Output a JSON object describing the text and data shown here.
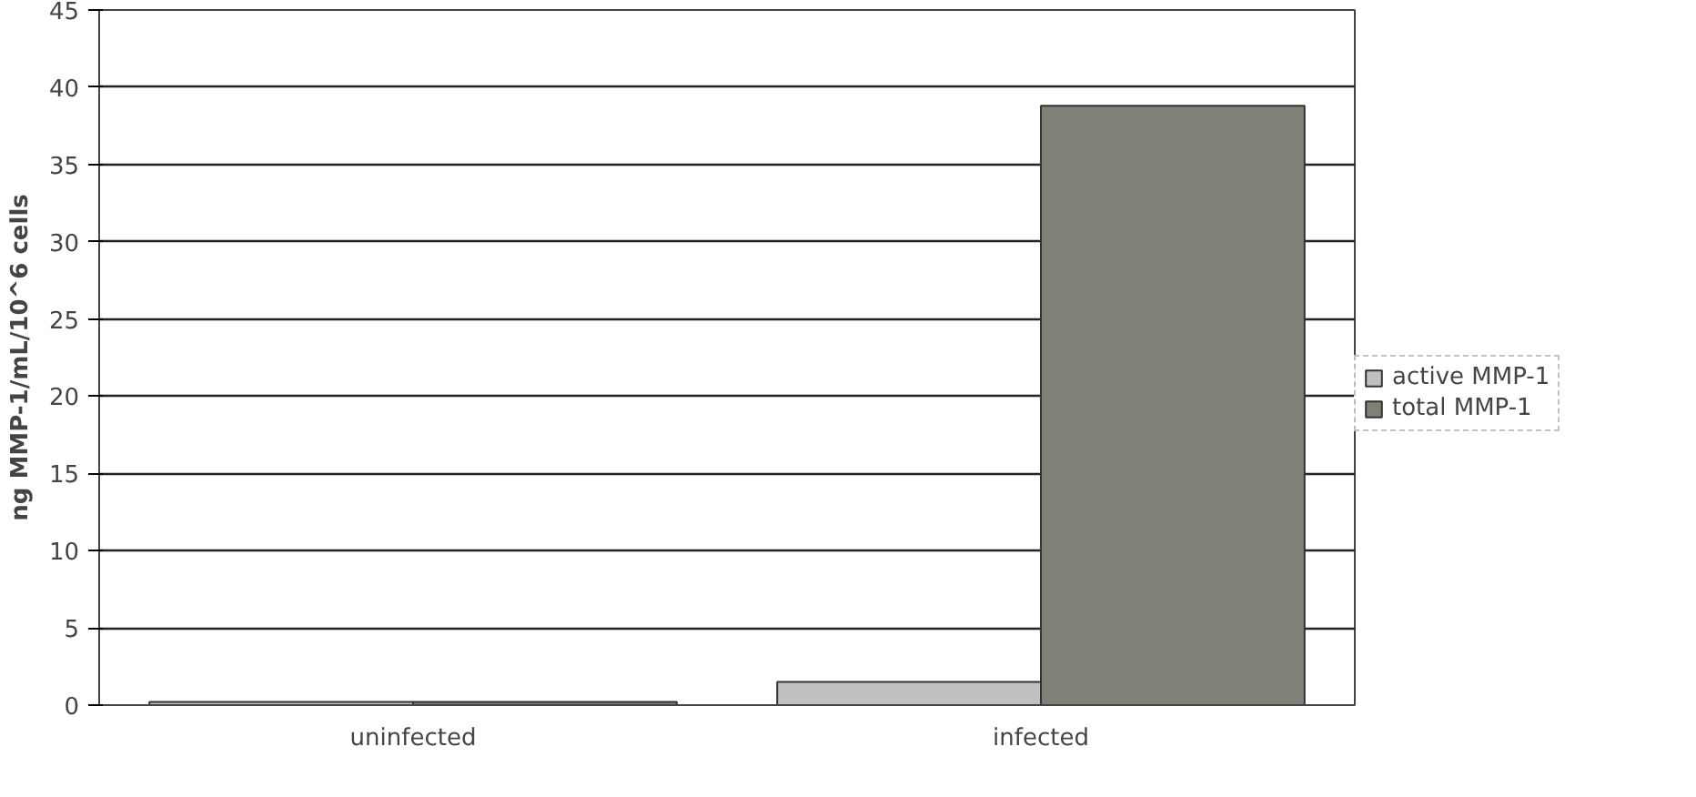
{
  "chart_data": {
    "type": "bar",
    "ylabel": "ng MMP-1/mL/10^6 cells",
    "categories": [
      "uninfected",
      "infected"
    ],
    "series": [
      {
        "name": "active MMP-1",
        "color": "#c0c0c0",
        "values": [
          0.2,
          1.5
        ]
      },
      {
        "name": "total MMP-1",
        "color": "#808078",
        "values": [
          0.2,
          38.8
        ]
      }
    ],
    "ylim": [
      0,
      45
    ],
    "yticks": [
      0,
      5,
      10,
      15,
      20,
      25,
      30,
      35,
      40,
      45
    ],
    "grid": "y",
    "legend": "right"
  }
}
